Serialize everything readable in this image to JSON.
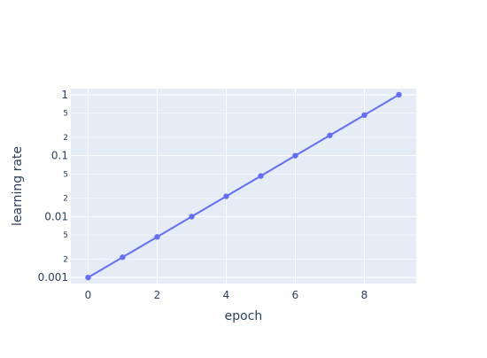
{
  "chart_data": {
    "type": "line",
    "title": "",
    "xlabel": "epoch",
    "ylabel": "learning rate",
    "xlim": [
      -0.5,
      9.5
    ],
    "ylim": [
      0.000795,
      1.26
    ],
    "yscale": "log",
    "grid": true,
    "x_ticks": [
      0,
      2,
      4,
      6,
      8
    ],
    "x_tick_labels": [
      "0",
      "2",
      "4",
      "6",
      "8"
    ],
    "y_major_ticks": [
      0.001,
      0.01,
      0.1,
      1
    ],
    "y_major_tick_labels": [
      "0.001",
      "0.01",
      "0.1",
      "1"
    ],
    "y_minor_ticks": [
      0.002,
      0.005,
      0.02,
      0.05,
      0.2,
      0.5
    ],
    "y_minor_tick_labels": [
      "2",
      "5",
      "2",
      "5",
      "2",
      "5"
    ],
    "series": [
      {
        "x": [
          0,
          1,
          2,
          3,
          4,
          5,
          6,
          7,
          8,
          9
        ],
        "y": [
          0.001,
          0.00215,
          0.00464,
          0.01,
          0.0215,
          0.0464,
          0.1,
          0.215,
          0.464,
          1
        ],
        "color": "#636efa",
        "mode": "lines+markers"
      }
    ]
  },
  "colors": {
    "plot_background": "#e5ecf6",
    "grid": "#ffffff",
    "text": "#2a3f5f"
  }
}
